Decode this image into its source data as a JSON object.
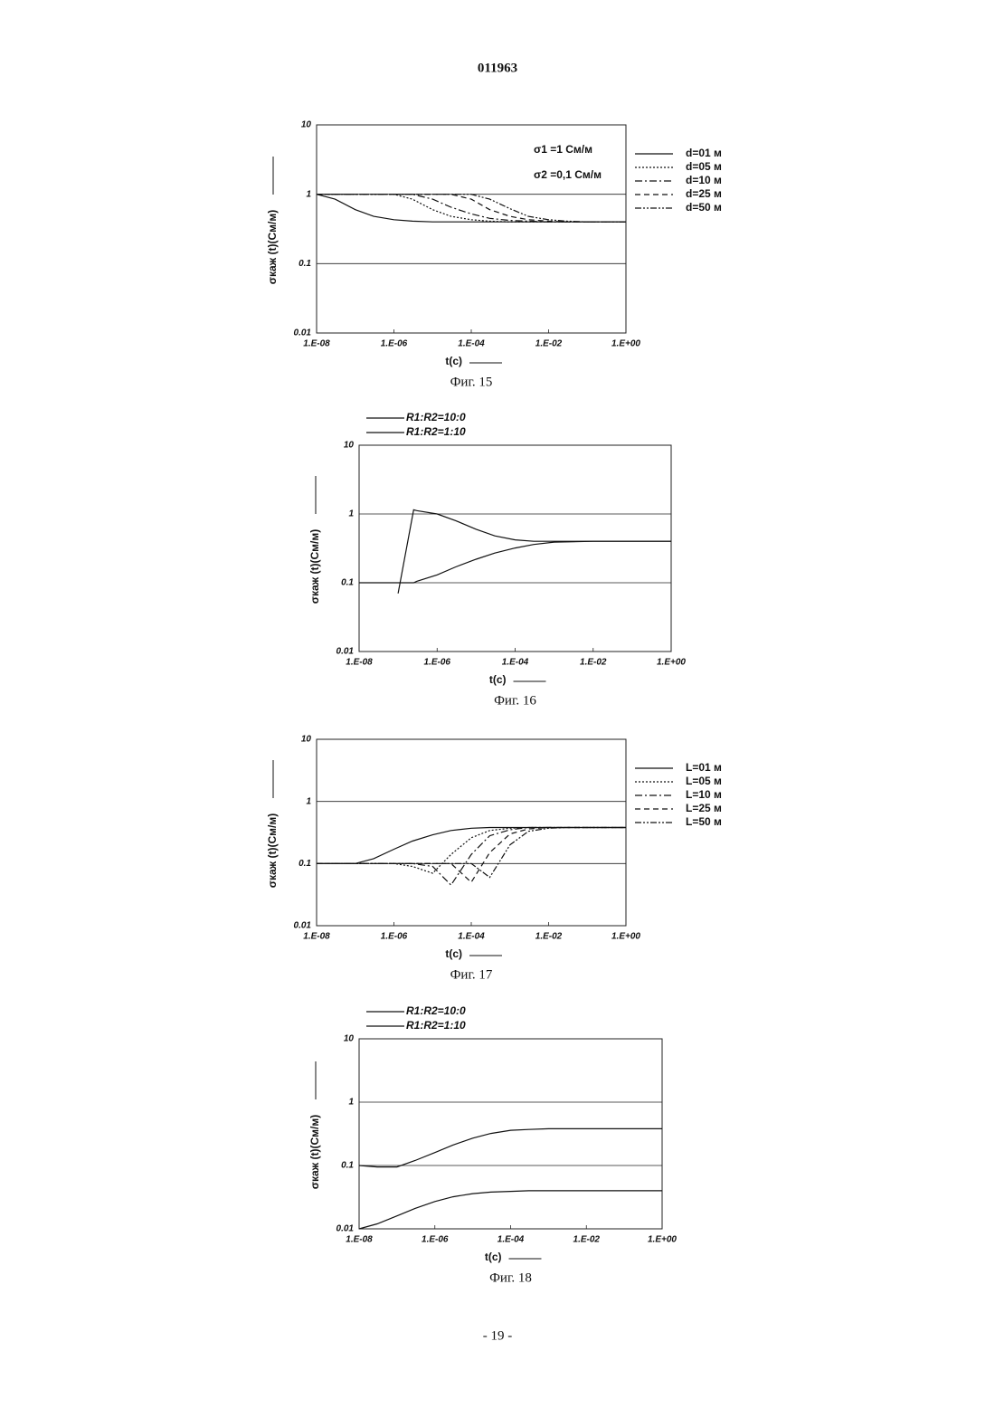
{
  "header": "011963",
  "footer": "- 19 -",
  "chart_data": [
    {
      "type": "line",
      "caption": "Фиг. 15",
      "xlabel": "t(c)",
      "ylabel": "σкаж (t)(См/м)",
      "log_x": true,
      "log_y": true,
      "grid": true,
      "legend": "right",
      "annotations": [
        "σ1 =1 См/м",
        "σ2 =0,1 См/м"
      ],
      "xlim": [
        1e-08,
        1
      ],
      "ylim": [
        0.01,
        10
      ],
      "xticks": [
        {
          "value": 1e-08,
          "label": "1.E-08"
        },
        {
          "value": 1e-06,
          "label": "1.E-06"
        },
        {
          "value": 0.0001,
          "label": "1.E-04"
        },
        {
          "value": 0.01,
          "label": "1.E-02"
        },
        {
          "value": 1,
          "label": "1.E+00"
        }
      ],
      "yticks": [
        0.01,
        0.1,
        1,
        10
      ],
      "x": [
        1e-08,
        3e-08,
        1e-07,
        3e-07,
        1e-06,
        3e-06,
        1e-05,
        3e-05,
        0.0001,
        0.0003,
        0.001,
        0.003,
        0.01,
        0.03,
        0.1,
        1
      ],
      "series": [
        {
          "name": "d=01 м",
          "color": "#111",
          "style": "solid",
          "values": [
            1,
            0.85,
            0.6,
            0.48,
            0.43,
            0.41,
            0.4,
            0.4,
            0.4,
            0.4,
            0.4,
            0.4,
            0.4,
            0.4,
            0.4,
            0.4
          ]
        },
        {
          "name": "d=05 м",
          "color": "#111",
          "style": "dotted",
          "values": [
            1,
            1,
            1,
            1,
            1,
            0.85,
            0.6,
            0.48,
            0.43,
            0.41,
            0.4,
            0.4,
            0.4,
            0.4,
            0.4,
            0.4
          ]
        },
        {
          "name": "d=10 м",
          "color": "#111",
          "style": "dashdot",
          "values": [
            1,
            1,
            1,
            1,
            1,
            1,
            0.85,
            0.65,
            0.52,
            0.45,
            0.42,
            0.41,
            0.4,
            0.4,
            0.4,
            0.4
          ]
        },
        {
          "name": "d=25 м",
          "color": "#111",
          "style": "dashed",
          "values": [
            1,
            1,
            1,
            1,
            1,
            1,
            1,
            1,
            0.85,
            0.6,
            0.48,
            0.43,
            0.41,
            0.4,
            0.4,
            0.4
          ]
        },
        {
          "name": "d=50 м",
          "color": "#111",
          "style": "dashdotdot",
          "values": [
            1,
            1,
            1,
            1,
            1,
            1,
            1,
            1,
            1,
            0.85,
            0.62,
            0.48,
            0.43,
            0.41,
            0.4,
            0.4
          ]
        }
      ]
    },
    {
      "type": "line",
      "caption": "Фиг. 16",
      "xlabel": "t(c)",
      "ylabel": "σкаж (t)(См/м)",
      "log_x": true,
      "log_y": true,
      "grid": true,
      "legend": "top-left",
      "xlim": [
        1e-08,
        1
      ],
      "ylim": [
        0.01,
        10
      ],
      "xticks": [
        {
          "value": 1e-08,
          "label": "1.E-08"
        },
        {
          "value": 1e-06,
          "label": "1.E-06"
        },
        {
          "value": 0.0001,
          "label": "1.E-04"
        },
        {
          "value": 0.01,
          "label": "1.E-02"
        },
        {
          "value": 1,
          "label": "1.E+00"
        }
      ],
      "yticks": [
        0.01,
        0.1,
        1,
        10
      ],
      "x": [
        1e-08,
        3e-08,
        1e-07,
        2.5e-07,
        3e-07,
        1e-06,
        3e-06,
        1e-05,
        3e-05,
        0.0001,
        0.0003,
        0.001,
        0.01,
        1
      ],
      "series": [
        {
          "name": "R1:R2=10:0",
          "color": "#111",
          "style": "solid",
          "values": [
            null,
            null,
            0.07,
            1.15,
            1.12,
            1.0,
            0.8,
            0.6,
            0.48,
            0.42,
            0.4,
            0.4,
            0.4,
            0.4
          ]
        },
        {
          "name": "R1:R2=1:10",
          "color": "#111",
          "style": "solid",
          "values": [
            0.1,
            0.1,
            0.1,
            0.1,
            0.105,
            0.13,
            0.17,
            0.22,
            0.27,
            0.32,
            0.36,
            0.39,
            0.4,
            0.4
          ]
        }
      ]
    },
    {
      "type": "line",
      "caption": "Фиг. 17",
      "xlabel": "t(c)",
      "ylabel": "σкаж (t)(См/м)",
      "log_x": true,
      "log_y": true,
      "grid": true,
      "legend": "right",
      "xlim": [
        1e-08,
        1
      ],
      "ylim": [
        0.01,
        10
      ],
      "xticks": [
        {
          "value": 1e-08,
          "label": "1.E-08"
        },
        {
          "value": 1e-06,
          "label": "1.E-06"
        },
        {
          "value": 0.0001,
          "label": "1.E-04"
        },
        {
          "value": 0.01,
          "label": "1.E-02"
        },
        {
          "value": 1,
          "label": "1.E+00"
        }
      ],
      "yticks": [
        0.01,
        0.1,
        1,
        10
      ],
      "x": [
        1e-08,
        3e-08,
        1e-07,
        3e-07,
        1e-06,
        3e-06,
        1e-05,
        3e-05,
        0.0001,
        0.0003,
        0.001,
        0.003,
        0.01,
        0.03,
        0.1,
        1
      ],
      "series": [
        {
          "name": "L=01 м",
          "color": "#111",
          "style": "solid",
          "values": [
            0.1,
            0.1,
            0.1,
            0.12,
            0.17,
            0.23,
            0.29,
            0.34,
            0.37,
            0.38,
            0.38,
            0.38,
            0.38,
            0.38,
            0.38,
            0.38
          ]
        },
        {
          "name": "L=05 м",
          "color": "#111",
          "style": "dotted",
          "values": [
            0.1,
            0.1,
            0.1,
            0.1,
            0.1,
            0.09,
            0.07,
            0.14,
            0.26,
            0.34,
            0.37,
            0.38,
            0.38,
            0.38,
            0.38,
            0.38
          ]
        },
        {
          "name": "L=10 м",
          "color": "#111",
          "style": "dashdot",
          "values": [
            0.1,
            0.1,
            0.1,
            0.1,
            0.1,
            0.1,
            0.09,
            0.045,
            0.14,
            0.28,
            0.35,
            0.38,
            0.38,
            0.38,
            0.38,
            0.38
          ]
        },
        {
          "name": "L=25 м",
          "color": "#111",
          "style": "dashed",
          "values": [
            0.1,
            0.1,
            0.1,
            0.1,
            0.1,
            0.1,
            0.1,
            0.1,
            0.05,
            0.15,
            0.3,
            0.36,
            0.38,
            0.38,
            0.38,
            0.38
          ]
        },
        {
          "name": "L=50 м",
          "color": "#111",
          "style": "dashdotdot",
          "values": [
            0.1,
            0.1,
            0.1,
            0.1,
            0.1,
            0.1,
            0.1,
            0.1,
            0.1,
            0.06,
            0.2,
            0.33,
            0.37,
            0.38,
            0.38,
            0.38
          ]
        }
      ]
    },
    {
      "type": "line",
      "caption": "Фиг. 18",
      "xlabel": "t(c)",
      "ylabel": "σкаж (t)(См/м)",
      "log_x": true,
      "log_y": true,
      "grid": true,
      "legend": "top-left",
      "xlim": [
        1e-08,
        1
      ],
      "ylim": [
        0.01,
        10
      ],
      "xticks": [
        {
          "value": 1e-08,
          "label": "1.E-08"
        },
        {
          "value": 1e-06,
          "label": "1.E-06"
        },
        {
          "value": 0.0001,
          "label": "1.E-04"
        },
        {
          "value": 0.01,
          "label": "1.E-02"
        },
        {
          "value": 1,
          "label": "1.E+00"
        }
      ],
      "yticks": [
        0.01,
        0.1,
        1,
        10
      ],
      "x": [
        1e-08,
        3e-08,
        1e-07,
        3e-07,
        1e-06,
        3e-06,
        1e-05,
        3e-05,
        0.0001,
        0.0003,
        0.001,
        0.01,
        1
      ],
      "series": [
        {
          "name": "R1:R2=10:0",
          "color": "#111",
          "style": "solid",
          "values": [
            0.1,
            0.095,
            0.095,
            0.12,
            0.16,
            0.21,
            0.27,
            0.32,
            0.36,
            0.37,
            0.38,
            0.38,
            0.38
          ]
        },
        {
          "name": "R1:R2=1:10",
          "color": "#111",
          "style": "solid",
          "values": [
            0.01,
            0.012,
            0.016,
            0.021,
            0.027,
            0.032,
            0.036,
            0.038,
            0.039,
            0.04,
            0.04,
            0.04,
            0.04
          ]
        }
      ]
    }
  ]
}
